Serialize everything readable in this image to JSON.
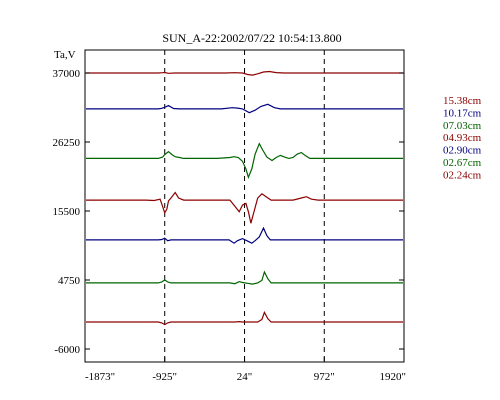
{
  "chart_data": {
    "type": "line",
    "title": "SUN_A-22:2002/07/22 10:54:13.800",
    "ylabel": "Ta,V",
    "xlim": [
      -1873,
      1920
    ],
    "ylim": [
      -6000,
      40000
    ],
    "x_ticks": [
      -1873,
      -925,
      24,
      972,
      1920
    ],
    "x_tick_labels": [
      "-1873\"",
      "-925\"",
      "24\"",
      "972\"",
      "1920\""
    ],
    "y_ticks": [
      37000,
      26250,
      15500,
      4750,
      -6000
    ],
    "y_tick_labels": [
      "37000",
      "26250",
      "15500",
      "4750",
      "-6000"
    ],
    "dashed_verticals": [
      -925,
      24,
      972
    ],
    "grid": false,
    "legend_position": "right",
    "series": [
      {
        "name": "15.38cm",
        "color": "#8b0000",
        "baseline": 37000,
        "points": [
          [
            -1873,
            0
          ],
          [
            -1200,
            0
          ],
          [
            -1000,
            0
          ],
          [
            -950,
            80
          ],
          [
            -925,
            120
          ],
          [
            -880,
            -80
          ],
          [
            -800,
            0
          ],
          [
            -600,
            0
          ],
          [
            -200,
            0
          ],
          [
            -100,
            60
          ],
          [
            0,
            0
          ],
          [
            60,
            -350
          ],
          [
            120,
            -500
          ],
          [
            180,
            -200
          ],
          [
            250,
            250
          ],
          [
            320,
            350
          ],
          [
            400,
            100
          ],
          [
            500,
            0
          ],
          [
            800,
            0
          ],
          [
            972,
            0
          ],
          [
            1200,
            0
          ],
          [
            1920,
            0
          ]
        ]
      },
      {
        "name": "10.17cm",
        "color": "#000080",
        "baseline": 31400,
        "points": [
          [
            -1873,
            0
          ],
          [
            -1200,
            0
          ],
          [
            -1000,
            0
          ],
          [
            -960,
            150
          ],
          [
            -925,
            400
          ],
          [
            -880,
            800
          ],
          [
            -820,
            100
          ],
          [
            -750,
            0
          ],
          [
            -500,
            0
          ],
          [
            -250,
            0
          ],
          [
            -120,
            300
          ],
          [
            -60,
            200
          ],
          [
            0,
            0
          ],
          [
            80,
            -900
          ],
          [
            150,
            -300
          ],
          [
            220,
            600
          ],
          [
            300,
            1100
          ],
          [
            380,
            300
          ],
          [
            450,
            0
          ],
          [
            800,
            0
          ],
          [
            972,
            0
          ],
          [
            1200,
            0
          ],
          [
            1920,
            0
          ]
        ]
      },
      {
        "name": "07.03cm",
        "color": "#006400",
        "baseline": 23700,
        "points": [
          [
            -1873,
            0
          ],
          [
            -1100,
            0
          ],
          [
            -1000,
            0
          ],
          [
            -950,
            300
          ],
          [
            -925,
            900
          ],
          [
            -880,
            1600
          ],
          [
            -840,
            900
          ],
          [
            -800,
            400
          ],
          [
            -750,
            200
          ],
          [
            -700,
            0
          ],
          [
            -500,
            0
          ],
          [
            -300,
            0
          ],
          [
            -150,
            200
          ],
          [
            -100,
            400
          ],
          [
            -50,
            200
          ],
          [
            0,
            -700
          ],
          [
            40,
            -2500
          ],
          [
            70,
            -4500
          ],
          [
            110,
            -2500
          ],
          [
            150,
            1000
          ],
          [
            200,
            3500
          ],
          [
            240,
            2000
          ],
          [
            290,
            300
          ],
          [
            350,
            -500
          ],
          [
            400,
            200
          ],
          [
            450,
            700
          ],
          [
            500,
            300
          ],
          [
            550,
            0
          ],
          [
            600,
            200
          ],
          [
            650,
            1000
          ],
          [
            700,
            1400
          ],
          [
            750,
            600
          ],
          [
            800,
            0
          ],
          [
            900,
            0
          ],
          [
            1200,
            0
          ],
          [
            1920,
            0
          ]
        ]
      },
      {
        "name": "04.93cm",
        "color": "#8b0000",
        "baseline": 17200,
        "points": [
          [
            -1873,
            0
          ],
          [
            -1500,
            0
          ],
          [
            -1150,
            0
          ],
          [
            -1050,
            -100
          ],
          [
            -980,
            200
          ],
          [
            -950,
            -1500
          ],
          [
            -925,
            -3000
          ],
          [
            -900,
            -2200
          ],
          [
            -880,
            -200
          ],
          [
            -850,
            500
          ],
          [
            -800,
            1800
          ],
          [
            -760,
            500
          ],
          [
            -700,
            0
          ],
          [
            -500,
            0
          ],
          [
            -300,
            0
          ],
          [
            -150,
            0
          ],
          [
            -90,
            -1500
          ],
          [
            -40,
            -2800
          ],
          [
            0,
            -1200
          ],
          [
            40,
            -800
          ],
          [
            70,
            -2800
          ],
          [
            100,
            -5500
          ],
          [
            140,
            -2500
          ],
          [
            180,
            500
          ],
          [
            230,
            1500
          ],
          [
            280,
            800
          ],
          [
            340,
            0
          ],
          [
            500,
            0
          ],
          [
            600,
            0
          ],
          [
            700,
            500
          ],
          [
            760,
            800
          ],
          [
            820,
            200
          ],
          [
            900,
            0
          ],
          [
            1200,
            0
          ],
          [
            1920,
            0
          ]
        ]
      },
      {
        "name": "02.90cm",
        "color": "#000080",
        "baseline": 11000,
        "points": [
          [
            -1873,
            0
          ],
          [
            -1000,
            0
          ],
          [
            -960,
            100
          ],
          [
            -925,
            400
          ],
          [
            -890,
            -200
          ],
          [
            -850,
            0
          ],
          [
            -600,
            0
          ],
          [
            -300,
            0
          ],
          [
            -160,
            0
          ],
          [
            -100,
            -800
          ],
          [
            -60,
            -200
          ],
          [
            0,
            300
          ],
          [
            60,
            -300
          ],
          [
            110,
            -800
          ],
          [
            150,
            -200
          ],
          [
            200,
            700
          ],
          [
            250,
            2800
          ],
          [
            290,
            1000
          ],
          [
            330,
            0
          ],
          [
            500,
            0
          ],
          [
            972,
            0
          ],
          [
            1920,
            0
          ]
        ]
      },
      {
        "name": "02.67cm",
        "color": "#006400",
        "baseline": 4300,
        "points": [
          [
            -1873,
            0
          ],
          [
            -1000,
            0
          ],
          [
            -960,
            200
          ],
          [
            -925,
            700
          ],
          [
            -890,
            200
          ],
          [
            -850,
            0
          ],
          [
            -600,
            0
          ],
          [
            -300,
            0
          ],
          [
            -150,
            0
          ],
          [
            -90,
            -200
          ],
          [
            -40,
            300
          ],
          [
            0,
            100
          ],
          [
            60,
            -100
          ],
          [
            120,
            -300
          ],
          [
            180,
            0
          ],
          [
            230,
            600
          ],
          [
            260,
            2600
          ],
          [
            300,
            1000
          ],
          [
            340,
            0
          ],
          [
            500,
            0
          ],
          [
            972,
            0
          ],
          [
            1920,
            0
          ]
        ]
      },
      {
        "name": "02.24cm",
        "color": "#8b0000",
        "baseline": -1800,
        "points": [
          [
            -1873,
            0
          ],
          [
            -1000,
            0
          ],
          [
            -960,
            -200
          ],
          [
            -925,
            -600
          ],
          [
            -890,
            -200
          ],
          [
            -850,
            0
          ],
          [
            -600,
            0
          ],
          [
            -300,
            0
          ],
          [
            -150,
            0
          ],
          [
            -90,
            0
          ],
          [
            -40,
            100
          ],
          [
            0,
            0
          ],
          [
            100,
            0
          ],
          [
            180,
            0
          ],
          [
            230,
            600
          ],
          [
            260,
            2300
          ],
          [
            300,
            800
          ],
          [
            340,
            0
          ],
          [
            500,
            0
          ],
          [
            972,
            0
          ],
          [
            1920,
            0
          ]
        ]
      }
    ]
  }
}
